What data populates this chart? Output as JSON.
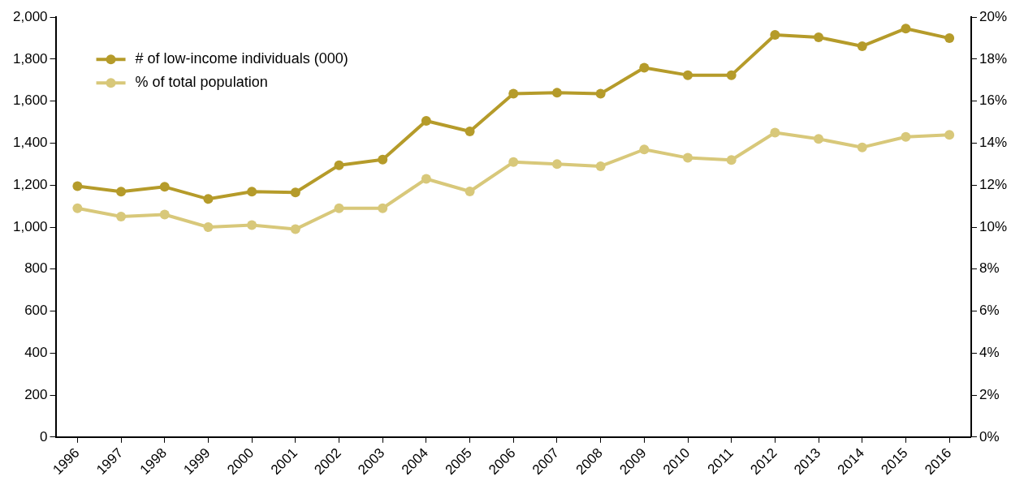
{
  "chart_data": {
    "type": "line",
    "categories": [
      "1996",
      "1997",
      "1998",
      "1999",
      "2000",
      "2001",
      "2002",
      "2003",
      "2004",
      "2005",
      "2006",
      "2007",
      "2008",
      "2009",
      "2010",
      "2011",
      "2012",
      "2013",
      "2014",
      "2015",
      "2016"
    ],
    "series": [
      {
        "name": "# of low-income individuals (000)",
        "color": "#b59b2a",
        "values": [
          1195,
          1169,
          1192,
          1134,
          1169,
          1165,
          1295,
          1322,
          1506,
          1456,
          1636,
          1640,
          1636,
          1759,
          1724,
          1724,
          1916,
          1904,
          1862,
          1946,
          1900
        ]
      },
      {
        "name": "% of total population",
        "color": "#d8c87a",
        "axis": "y2",
        "values": [
          10.9,
          10.5,
          10.6,
          10.0,
          10.1,
          9.9,
          10.9,
          10.9,
          12.3,
          11.7,
          13.1,
          13.0,
          12.9,
          13.7,
          13.3,
          13.2,
          14.5,
          14.2,
          13.8,
          14.3,
          14.4
        ]
      }
    ],
    "ylim": [
      0,
      2000
    ],
    "yticks": [
      0,
      200,
      400,
      600,
      800,
      {
        "value": 1000,
        "label": "1,000"
      },
      {
        "value": 1200,
        "label": "1,200"
      },
      {
        "value": 1400,
        "label": "1,400"
      },
      {
        "value": 1600,
        "label": "1,600"
      },
      {
        "value": 1800,
        "label": "1,800"
      },
      {
        "value": 2000,
        "label": "2,000"
      }
    ],
    "y2lim": [
      0,
      20
    ],
    "y2ticks": [
      {
        "value": 0,
        "label": "0%"
      },
      {
        "value": 2,
        "label": "2%"
      },
      {
        "value": 4,
        "label": "4%"
      },
      {
        "value": 6,
        "label": "6%"
      },
      {
        "value": 8,
        "label": "8%"
      },
      {
        "value": 10,
        "label": "10%"
      },
      {
        "value": 12,
        "label": "12%"
      },
      {
        "value": 14,
        "label": "14%"
      },
      {
        "value": 16,
        "label": "16%"
      },
      {
        "value": 18,
        "label": "18%"
      },
      {
        "value": 20,
        "label": "20%"
      }
    ],
    "grid": false,
    "legend": "top left",
    "marker": "circle",
    "line_style": "solid"
  }
}
